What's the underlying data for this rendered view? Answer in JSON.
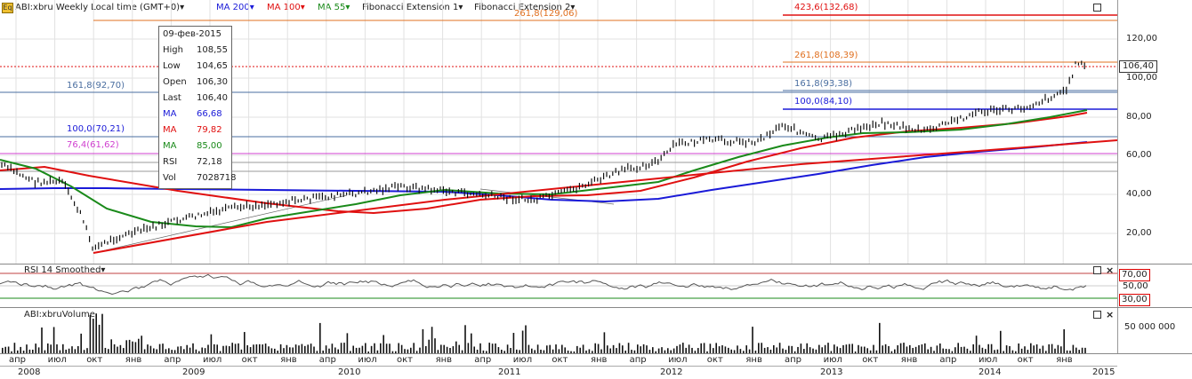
{
  "header": {
    "symbol_badge": "Eq",
    "symbol": "ABI:xbru Weekly Local time (GMT+0)▾",
    "ma200": "MA 200▾",
    "ma100": "MA 100▾",
    "ma55": "MA 55▾",
    "fib1": "Fibonacci Extension 1▾",
    "fib2": "Fibonacci Extension 2▾"
  },
  "tooltip": {
    "date": "09-фев-2015",
    "rows": [
      {
        "label": "High",
        "value": "108,55",
        "color": "#222222"
      },
      {
        "label": "Low",
        "value": "104,65",
        "color": "#222222"
      },
      {
        "label": "Open",
        "value": "106,30",
        "color": "#222222"
      },
      {
        "label": "Last",
        "value": "106,40",
        "color": "#222222"
      },
      {
        "label": "MA",
        "value": "66,68",
        "color": "#1a1ad8"
      },
      {
        "label": "MA",
        "value": "79,82",
        "color": "#e01010"
      },
      {
        "label": "MA",
        "value": "85,00",
        "color": "#1a8a1a"
      },
      {
        "label": "RSI",
        "value": "72,18",
        "color": "#222222"
      },
      {
        "label": "Vol",
        "value": "7028718",
        "color": "#222222"
      }
    ]
  },
  "fib_levels": {
    "l423": "423,6(132,68)",
    "l261a": "261,8(129,06)",
    "l261b": "261,8(108,39)",
    "l161a": "161,8(92,70)",
    "l161b": "161,8(93,38)",
    "l100a": "100,0(70,21)",
    "l100b": "100,0(84,10)",
    "l76": "76,4(61,62)"
  },
  "price_axis": {
    "ticks": [
      "120,00",
      "100,00",
      "80,00",
      "60,00",
      "40,00",
      "20,00"
    ],
    "last_price": "106,40"
  },
  "rsi": {
    "title": "RSI 14 Smoothed▾",
    "upper": "70,00",
    "middle": "50,00",
    "lower": "30,00"
  },
  "volume": {
    "title": "ABI:xbruVolume",
    "tick": "50 000 000"
  },
  "time_axis": {
    "months": [
      "апр",
      "июл",
      "окт",
      "янв",
      "апр",
      "июл",
      "окт",
      "янв",
      "апр",
      "июл",
      "окт",
      "янв",
      "апр",
      "июл",
      "окт",
      "янв",
      "апр",
      "июл",
      "окт",
      "янв",
      "апр",
      "июл",
      "окт",
      "янв",
      "апр",
      "июл",
      "окт",
      "янв"
    ],
    "years": [
      "2008",
      "2009",
      "2010",
      "2011",
      "2012",
      "2013",
      "2014",
      "2015"
    ]
  },
  "colors": {
    "ma200": "#1a1ad8",
    "ma100": "#e01010",
    "ma55": "#1a8a1a",
    "fib1": "#4a6ea0",
    "fib2": "#e07020",
    "rsi_line": "#8b0000",
    "grid": "#dddddd"
  }
}
